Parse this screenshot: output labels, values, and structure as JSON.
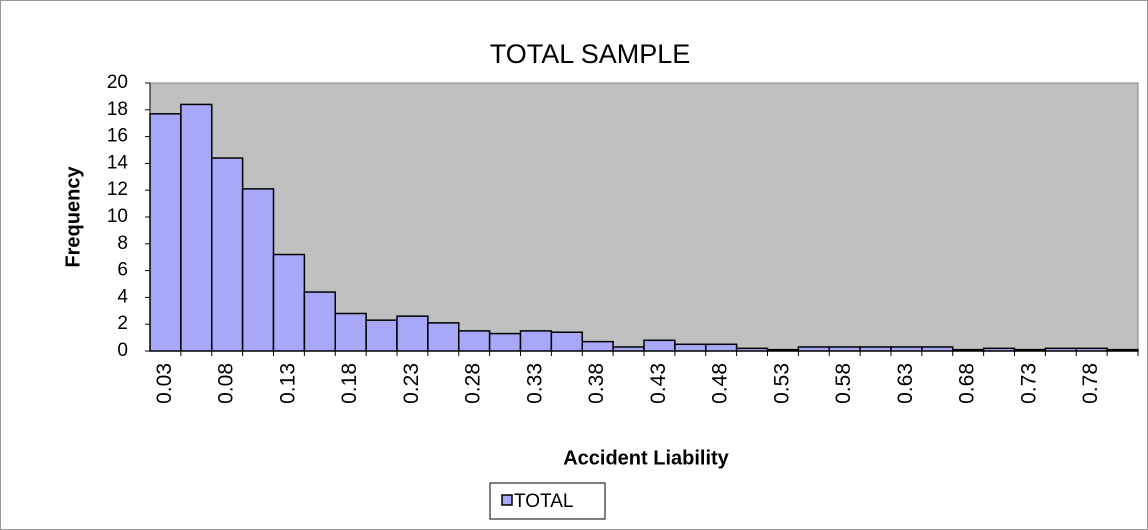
{
  "chart_data": {
    "type": "bar",
    "title": "TOTAL SAMPLE",
    "x_label": "Accident Liability",
    "y_label": "Frequency",
    "categories": [
      "0.03",
      null,
      "0.08",
      null,
      "0.13",
      null,
      "0.18",
      null,
      "0.23",
      null,
      "0.28",
      null,
      "0.33",
      null,
      "0.38",
      null,
      "0.43",
      null,
      "0.48",
      null,
      "0.53",
      null,
      "0.58",
      null,
      "0.63",
      null,
      "0.68",
      null,
      "0.73",
      null,
      "0.78",
      null
    ],
    "series": [
      {
        "name": "TOTAL",
        "color": "#a8a8f8",
        "values": [
          17.7,
          18.4,
          14.4,
          12.1,
          7.2,
          4.4,
          2.8,
          2.3,
          2.6,
          2.1,
          1.5,
          1.3,
          1.5,
          1.4,
          0.7,
          0.3,
          0.8,
          0.5,
          0.5,
          0.2,
          0.1,
          0.3,
          0.3,
          0.3,
          0.3,
          0.3,
          0.1,
          0.2,
          0.1,
          0.2,
          0.2,
          0.1
        ]
      }
    ],
    "ylim": [
      0,
      20
    ],
    "yticks": [
      0,
      2,
      4,
      6,
      8,
      10,
      12,
      14,
      16,
      18,
      20
    ],
    "plot_background": "#c0c0c0",
    "legend": "bottom"
  }
}
